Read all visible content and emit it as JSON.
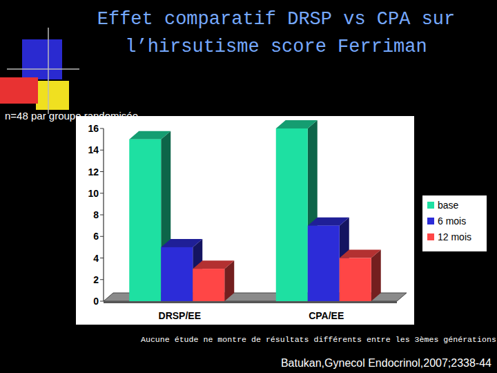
{
  "chart_data": {
    "type": "bar",
    "title": "Effet comparatif DRSP vs CPA sur l’hirsutisme score Ferriman",
    "subtitle": "n=48 par groupe randomisée",
    "annotations": [
      "Aucune étude ne montre de résultats différents entre les 3èmes générations",
      "Batukan,Gynecol Endocrinol,2007;2338-44"
    ],
    "categories": [
      "DRSP/EE",
      "CPA/EE"
    ],
    "series": [
      {
        "name": "base",
        "color": "#1ee0a2",
        "values": [
          15,
          16
        ]
      },
      {
        "name": "6 mois",
        "color": "#2c2cd8",
        "values": [
          5,
          7
        ]
      },
      {
        "name": "12 mois",
        "color": "#ff4646",
        "values": [
          3,
          4
        ]
      }
    ],
    "ylim": [
      0,
      16
    ],
    "yticks": [
      0,
      2,
      4,
      6,
      8,
      10,
      12,
      14,
      16
    ],
    "grid": false,
    "legend": "right"
  }
}
